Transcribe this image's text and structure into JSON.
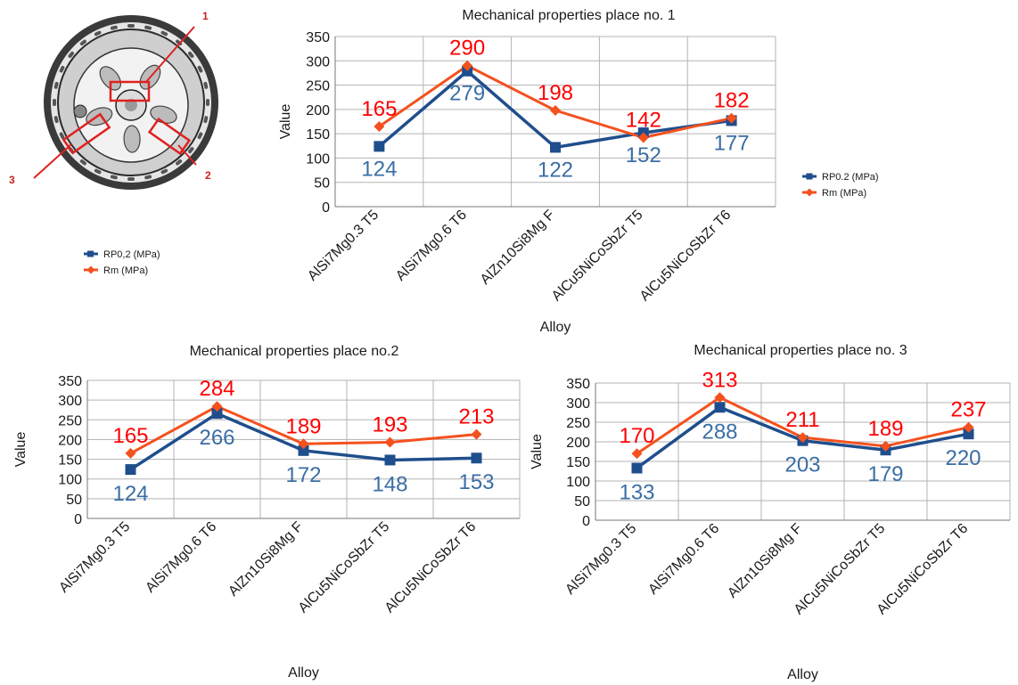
{
  "colors": {
    "rp": "#1f4e8c",
    "rm": "#f4511e",
    "rm_label": "#ff0000",
    "rp_label": "#3a6ea5",
    "grid": "#b3b3b3",
    "callout": "#cc1f1f"
  },
  "photo": {
    "callouts": [
      "1",
      "2",
      "3"
    ]
  },
  "side_legend": {
    "rp": "RP0,2 (MPa)",
    "rm": "Rm (MPa)"
  },
  "chart_data": [
    {
      "type": "line",
      "title": "Mechanical properties place no. 1",
      "xlabel": "Alloy",
      "ylabel": "Value",
      "ylim": [
        0,
        350
      ],
      "yticks": [
        0,
        50,
        100,
        150,
        200,
        250,
        300,
        350
      ],
      "grid": true,
      "legend": "right",
      "categories": [
        "AlSi7Mg0.3 T5",
        "AlSi7Mg0.6 T6",
        "AlZn10Si8Mg F",
        "AlCu5NiCoSbZr T5",
        "AlCu5NiCoSbZr T6"
      ],
      "series": [
        {
          "name": "RP0.2 (MPa)",
          "values": [
            124,
            279,
            122,
            152,
            177
          ]
        },
        {
          "name": "Rm (MPa)",
          "values": [
            165,
            290,
            198,
            142,
            182
          ]
        }
      ]
    },
    {
      "type": "line",
      "title": "Mechanical properties place no.2",
      "xlabel": "Alloy",
      "ylabel": "Value",
      "ylim": [
        0,
        350
      ],
      "yticks": [
        0,
        50,
        100,
        150,
        200,
        250,
        300,
        350
      ],
      "grid": true,
      "categories": [
        "AlSi7Mg0.3 T5",
        "AlSi7Mg0.6 T6",
        "AlZn10Si8Mg F",
        "AlCu5NiCoSbZr T5",
        "AlCu5NiCoSbZr T6"
      ],
      "series": [
        {
          "values": [
            124,
            266,
            172,
            148,
            153
          ]
        },
        {
          "values": [
            165,
            284,
            189,
            193,
            213
          ]
        }
      ]
    },
    {
      "type": "line",
      "title": "Mechanical properties place no. 3",
      "xlabel": "Alloy",
      "ylabel": "Value",
      "ylim": [
        0,
        350
      ],
      "yticks": [
        0,
        50,
        100,
        150,
        200,
        250,
        300,
        350
      ],
      "grid": true,
      "categories": [
        "AlSi7Mg0.3 T5",
        "AlSi7Mg0.6 T6",
        "AlZn10Si8Mg F",
        "AlCu5NiCoSbZr T5",
        "AlCu5NiCoSbZr T6"
      ],
      "series": [
        {
          "values": [
            133,
            288,
            203,
            179,
            220
          ]
        },
        {
          "values": [
            170,
            313,
            211,
            189,
            237
          ]
        }
      ]
    }
  ]
}
